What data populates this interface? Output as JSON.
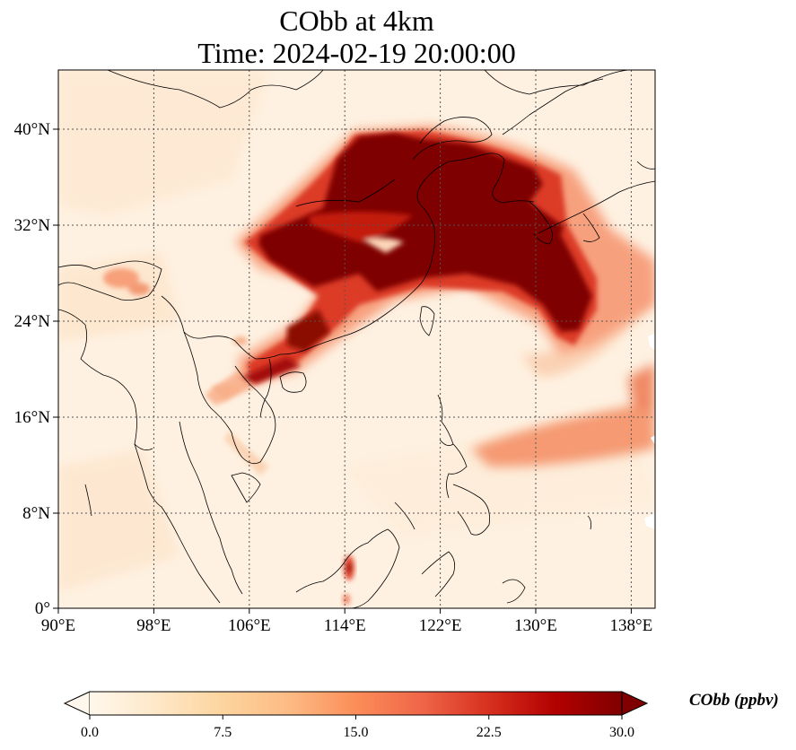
{
  "title": {
    "line1": "CObb at 4km",
    "line2": "Time: 2024-02-19 20:00:00"
  },
  "map": {
    "variable": "CObb",
    "level": "4km",
    "lon_range": [
      90,
      140
    ],
    "lat_range": [
      0,
      44
    ],
    "lon_ticks": [
      "90°E",
      "98°E",
      "106°E",
      "114°E",
      "122°E",
      "130°E",
      "138°E"
    ],
    "lat_ticks": [
      "0°",
      "8°N",
      "16°N",
      "24°N",
      "32°N",
      "40°N"
    ],
    "grid": "dotted",
    "colormap": "OrRd",
    "extend": "both"
  },
  "colorbar": {
    "label": "CObb (ppbv)",
    "min": 0.0,
    "max": 30.0,
    "ticks": [
      "0.0",
      "7.5",
      "15.0",
      "22.5",
      "30.0"
    ],
    "colors": [
      "#fff7ec",
      "#fee8c8",
      "#fdd49e",
      "#fdbb84",
      "#fc8d59",
      "#ef6548",
      "#d7301f",
      "#b30000",
      "#7f0000"
    ]
  }
}
